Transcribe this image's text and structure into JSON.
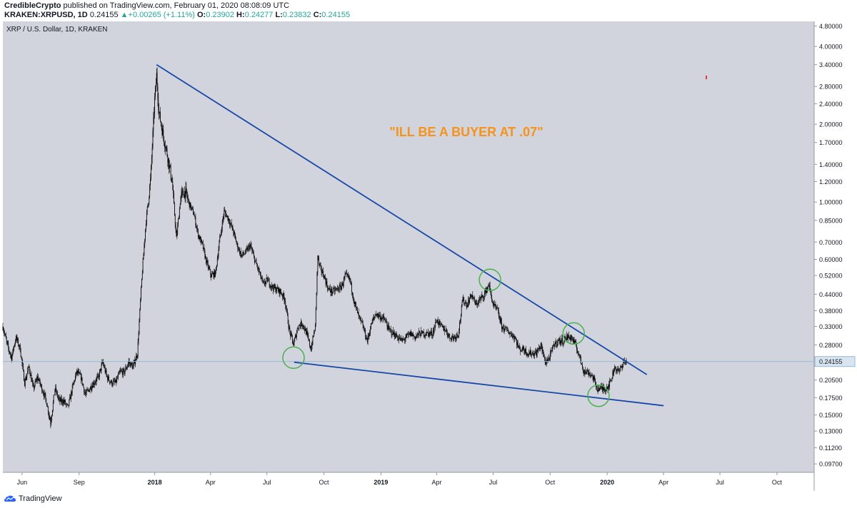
{
  "header": {
    "author": "CredibleCrypto",
    "published": " published on TradingView.com, February 01, 2020 08:08:09 UTC",
    "symbol": "KRAKEN:XRPUSD, 1D",
    "last": "0.24155",
    "change": "+0.00265 (+1.11%)",
    "o_label": "O:",
    "o_value": "0.23902",
    "h_label": "H:",
    "h_value": "0.24277",
    "l_label": "L:",
    "l_value": "0.23832",
    "c_label": "C:",
    "c_value": "0.24155"
  },
  "footer": {
    "logo_text": "TradingView",
    "logo_icon": "tradingview-cloud-icon"
  },
  "colors": {
    "background": "#d1d4dc",
    "candle": "#000000",
    "trendline": "#1848a8",
    "circle": "#4caf50",
    "annotation": "#f7931a",
    "price_line": "#9bb8d3",
    "price_label_bg": "#d8e4f0"
  },
  "chart_data": {
    "type": "candlestick",
    "title": "XRP / U.S. Dollar, 1D, KRAKEN",
    "y_scale": "log",
    "ylim": [
      0.09,
      5.0
    ],
    "y_ticks": [
      "4.80000",
      "4.00000",
      "3.40000",
      "2.80000",
      "2.40000",
      "2.00000",
      "1.70000",
      "1.40000",
      "1.20000",
      "1.00000",
      "0.85000",
      "0.70000",
      "0.60000",
      "0.52000",
      "0.44000",
      "0.38000",
      "0.33000",
      "0.28000",
      "0.20500",
      "0.17500",
      "0.15000",
      "0.13000",
      "0.11200",
      "0.09700"
    ],
    "x_ticks": [
      "Jun",
      "Sep",
      "2018",
      "Apr",
      "Jul",
      "Oct",
      "2019",
      "Apr",
      "Jul",
      "Oct",
      "2020",
      "Apr",
      "Jul",
      "Oct"
    ],
    "x_ticks_bold": [
      "2018",
      "2019",
      "2020"
    ],
    "last_price": "0.24155",
    "annotation": "\"ILL BE A BUYER AT .07\"",
    "price_path": [
      [
        "2017-05-01",
        0.33
      ],
      [
        "2017-05-08",
        0.28
      ],
      [
        "2017-05-15",
        0.25
      ],
      [
        "2017-05-22",
        0.3
      ],
      [
        "2017-05-29",
        0.27
      ],
      [
        "2017-06-05",
        0.2
      ],
      [
        "2017-06-12",
        0.23
      ],
      [
        "2017-06-19",
        0.19
      ],
      [
        "2017-06-26",
        0.21
      ],
      [
        "2017-07-03",
        0.19
      ],
      [
        "2017-07-10",
        0.17
      ],
      [
        "2017-07-17",
        0.14
      ],
      [
        "2017-07-24",
        0.19
      ],
      [
        "2017-07-31",
        0.17
      ],
      [
        "2017-08-07",
        0.17
      ],
      [
        "2017-08-14",
        0.16
      ],
      [
        "2017-08-21",
        0.19
      ],
      [
        "2017-08-28",
        0.22
      ],
      [
        "2017-09-04",
        0.21
      ],
      [
        "2017-09-11",
        0.18
      ],
      [
        "2017-09-18",
        0.19
      ],
      [
        "2017-09-25",
        0.2
      ],
      [
        "2017-10-02",
        0.21
      ],
      [
        "2017-10-09",
        0.24
      ],
      [
        "2017-10-16",
        0.21
      ],
      [
        "2017-10-23",
        0.2
      ],
      [
        "2017-10-30",
        0.2
      ],
      [
        "2017-11-06",
        0.22
      ],
      [
        "2017-11-13",
        0.22
      ],
      [
        "2017-11-20",
        0.24
      ],
      [
        "2017-11-27",
        0.23
      ],
      [
        "2017-12-04",
        0.26
      ],
      [
        "2017-12-11",
        0.5
      ],
      [
        "2017-12-18",
        0.85
      ],
      [
        "2017-12-25",
        1.2
      ],
      [
        "2018-01-01",
        2.5
      ],
      [
        "2018-01-04",
        3.1
      ],
      [
        "2018-01-08",
        2.2
      ],
      [
        "2018-01-15",
        1.8
      ],
      [
        "2018-01-22",
        1.5
      ],
      [
        "2018-01-29",
        1.2
      ],
      [
        "2018-02-05",
        0.72
      ],
      [
        "2018-02-12",
        1.05
      ],
      [
        "2018-02-19",
        1.1
      ],
      [
        "2018-02-26",
        0.98
      ],
      [
        "2018-03-05",
        0.9
      ],
      [
        "2018-03-12",
        0.75
      ],
      [
        "2018-03-19",
        0.68
      ],
      [
        "2018-03-26",
        0.58
      ],
      [
        "2018-04-02",
        0.52
      ],
      [
        "2018-04-09",
        0.53
      ],
      [
        "2018-04-16",
        0.72
      ],
      [
        "2018-04-23",
        0.92
      ],
      [
        "2018-04-30",
        0.86
      ],
      [
        "2018-05-07",
        0.78
      ],
      [
        "2018-05-14",
        0.68
      ],
      [
        "2018-05-21",
        0.62
      ],
      [
        "2018-05-28",
        0.64
      ],
      [
        "2018-06-04",
        0.68
      ],
      [
        "2018-06-11",
        0.6
      ],
      [
        "2018-06-18",
        0.54
      ],
      [
        "2018-06-25",
        0.48
      ],
      [
        "2018-07-02",
        0.5
      ],
      [
        "2018-07-09",
        0.47
      ],
      [
        "2018-07-16",
        0.46
      ],
      [
        "2018-07-23",
        0.45
      ],
      [
        "2018-07-30",
        0.42
      ],
      [
        "2018-08-06",
        0.32
      ],
      [
        "2018-08-13",
        0.28
      ],
      [
        "2018-08-20",
        0.33
      ],
      [
        "2018-08-27",
        0.34
      ],
      [
        "2018-09-03",
        0.31
      ],
      [
        "2018-09-10",
        0.27
      ],
      [
        "2018-09-17",
        0.33
      ],
      [
        "2018-09-21",
        0.62
      ],
      [
        "2018-09-24",
        0.56
      ],
      [
        "2018-10-01",
        0.52
      ],
      [
        "2018-10-08",
        0.46
      ],
      [
        "2018-10-15",
        0.45
      ],
      [
        "2018-10-22",
        0.46
      ],
      [
        "2018-10-29",
        0.47
      ],
      [
        "2018-11-05",
        0.52
      ],
      [
        "2018-11-12",
        0.5
      ],
      [
        "2018-11-19",
        0.41
      ],
      [
        "2018-11-26",
        0.36
      ],
      [
        "2018-12-03",
        0.33
      ],
      [
        "2018-12-10",
        0.29
      ],
      [
        "2018-12-17",
        0.34
      ],
      [
        "2018-12-24",
        0.37
      ],
      [
        "2018-12-31",
        0.36
      ],
      [
        "2019-01-07",
        0.35
      ],
      [
        "2019-01-14",
        0.32
      ],
      [
        "2019-01-21",
        0.31
      ],
      [
        "2019-01-28",
        0.3
      ],
      [
        "2019-02-04",
        0.29
      ],
      [
        "2019-02-11",
        0.3
      ],
      [
        "2019-02-18",
        0.31
      ],
      [
        "2019-02-25",
        0.3
      ],
      [
        "2019-03-04",
        0.31
      ],
      [
        "2019-03-11",
        0.31
      ],
      [
        "2019-03-18",
        0.31
      ],
      [
        "2019-03-25",
        0.31
      ],
      [
        "2019-04-01",
        0.35
      ],
      [
        "2019-04-08",
        0.33
      ],
      [
        "2019-04-15",
        0.32
      ],
      [
        "2019-04-22",
        0.3
      ],
      [
        "2019-04-29",
        0.3
      ],
      [
        "2019-05-06",
        0.31
      ],
      [
        "2019-05-13",
        0.42
      ],
      [
        "2019-05-20",
        0.4
      ],
      [
        "2019-05-27",
        0.44
      ],
      [
        "2019-06-03",
        0.4
      ],
      [
        "2019-06-10",
        0.42
      ],
      [
        "2019-06-17",
        0.44
      ],
      [
        "2019-06-24",
        0.48
      ],
      [
        "2019-07-01",
        0.4
      ],
      [
        "2019-07-08",
        0.38
      ],
      [
        "2019-07-15",
        0.33
      ],
      [
        "2019-07-22",
        0.32
      ],
      [
        "2019-07-29",
        0.31
      ],
      [
        "2019-08-05",
        0.3
      ],
      [
        "2019-08-12",
        0.27
      ],
      [
        "2019-08-19",
        0.27
      ],
      [
        "2019-08-26",
        0.26
      ],
      [
        "2019-09-02",
        0.26
      ],
      [
        "2019-09-09",
        0.26
      ],
      [
        "2019-09-16",
        0.28
      ],
      [
        "2019-09-23",
        0.24
      ],
      [
        "2019-09-30",
        0.25
      ],
      [
        "2019-10-07",
        0.28
      ],
      [
        "2019-10-14",
        0.29
      ],
      [
        "2019-10-21",
        0.29
      ],
      [
        "2019-10-28",
        0.3
      ],
      [
        "2019-11-04",
        0.3
      ],
      [
        "2019-11-11",
        0.28
      ],
      [
        "2019-11-18",
        0.25
      ],
      [
        "2019-11-25",
        0.22
      ],
      [
        "2019-12-02",
        0.22
      ],
      [
        "2019-12-09",
        0.21
      ],
      [
        "2019-12-16",
        0.19
      ],
      [
        "2019-12-23",
        0.19
      ],
      [
        "2019-12-30",
        0.19
      ],
      [
        "2020-01-06",
        0.2
      ],
      [
        "2020-01-13",
        0.23
      ],
      [
        "2020-01-20",
        0.22
      ],
      [
        "2020-01-27",
        0.24
      ],
      [
        "2020-02-01",
        0.24155
      ]
    ],
    "trendlines": [
      {
        "name": "upper",
        "from": [
          "2018-01-04",
          3.4
        ],
        "to": [
          "2020-03-05",
          0.215
        ]
      },
      {
        "name": "lower",
        "from": [
          "2018-08-14",
          0.24
        ],
        "to": [
          "2020-04-01",
          0.163
        ]
      }
    ],
    "circles": [
      [
        "2018-08-13",
        0.25
      ],
      [
        "2019-06-26",
        0.5
      ],
      [
        "2019-11-08",
        0.31
      ],
      [
        "2019-12-18",
        0.178
      ]
    ]
  }
}
